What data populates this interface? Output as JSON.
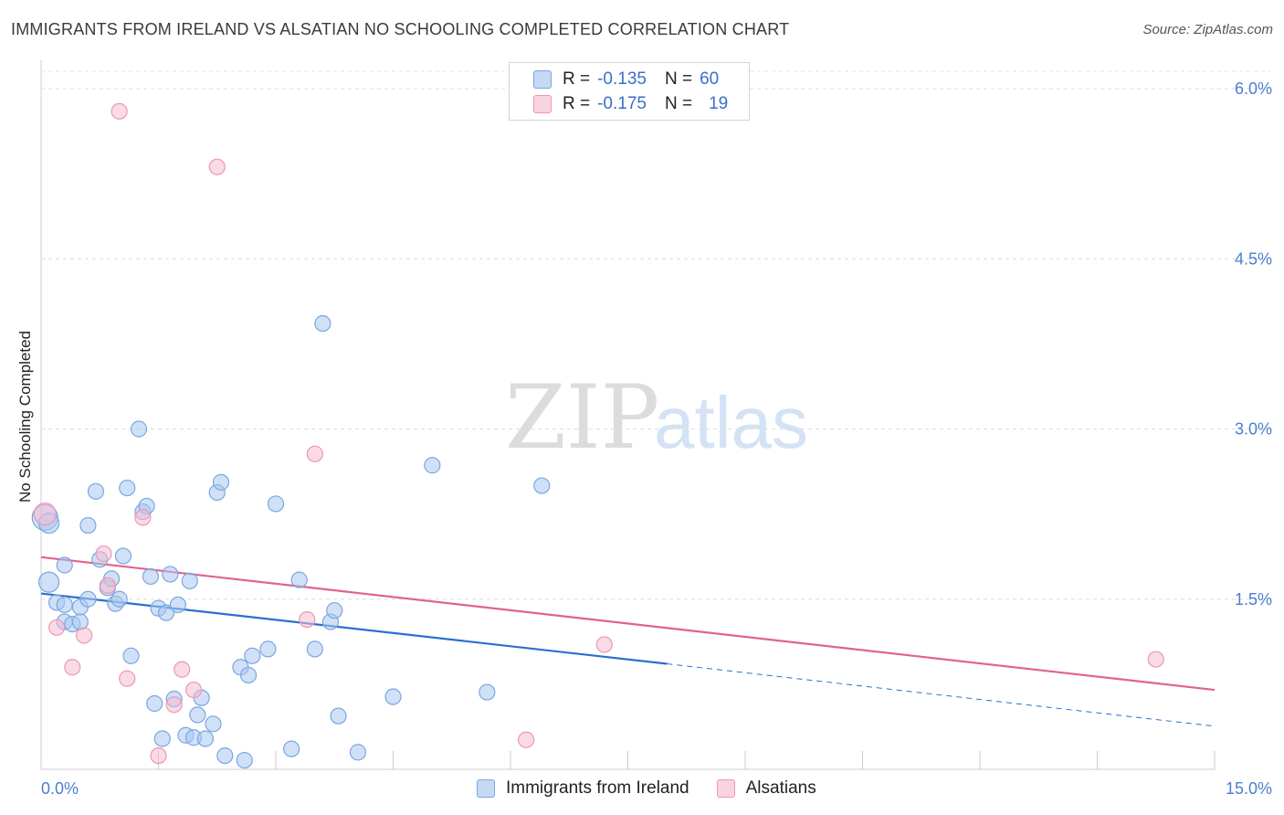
{
  "chart_data": {
    "type": "scatter",
    "title": "IMMIGRANTS FROM IRELAND VS ALSATIAN NO SCHOOLING COMPLETED CORRELATION CHART",
    "source": "Source: ZipAtlas.com",
    "xlabel": "",
    "ylabel": "No Schooling Completed",
    "xlim": [
      0,
      15
    ],
    "ylim": [
      0,
      6.2
    ],
    "x_tick_labels": [
      "0.0%",
      "15.0%"
    ],
    "y_ticks": [
      1.5,
      3.0,
      4.5,
      6.0
    ],
    "y_tick_labels": [
      "1.5%",
      "3.0%",
      "4.5%",
      "6.0%"
    ],
    "grid": true,
    "watermark": "ZIPatlas",
    "series": [
      {
        "name": "Immigrants from Ireland",
        "color": "#a9c8f0",
        "stroke": "#7aa6e0",
        "line_color": "#2a6fd1",
        "R": "-0.135",
        "N": "60",
        "trend": {
          "x0": 0,
          "y0": 1.55,
          "x1": 8.0,
          "y1": 0.93,
          "dash_to_x": 15,
          "dash_to_y": 0.38
        },
        "points": [
          [
            0.05,
            2.22
          ],
          [
            0.1,
            2.17
          ],
          [
            0.1,
            1.65
          ],
          [
            0.2,
            1.47
          ],
          [
            0.3,
            1.8
          ],
          [
            0.3,
            1.45
          ],
          [
            0.3,
            1.3
          ],
          [
            0.4,
            1.28
          ],
          [
            0.5,
            1.3
          ],
          [
            0.5,
            1.43
          ],
          [
            0.6,
            2.15
          ],
          [
            0.6,
            1.5
          ],
          [
            0.7,
            2.45
          ],
          [
            0.75,
            1.85
          ],
          [
            0.85,
            1.6
          ],
          [
            0.9,
            1.68
          ],
          [
            0.95,
            1.46
          ],
          [
            1.0,
            1.5
          ],
          [
            1.05,
            1.88
          ],
          [
            1.1,
            2.48
          ],
          [
            1.15,
            1.0
          ],
          [
            1.25,
            3.0
          ],
          [
            1.3,
            2.27
          ],
          [
            1.35,
            2.32
          ],
          [
            1.4,
            1.7
          ],
          [
            1.45,
            0.58
          ],
          [
            1.5,
            1.42
          ],
          [
            1.55,
            0.27
          ],
          [
            1.6,
            1.38
          ],
          [
            1.65,
            1.72
          ],
          [
            1.7,
            0.62
          ],
          [
            1.75,
            1.45
          ],
          [
            1.85,
            0.3
          ],
          [
            1.9,
            1.66
          ],
          [
            1.95,
            0.28
          ],
          [
            2.0,
            0.48
          ],
          [
            2.05,
            0.63
          ],
          [
            2.1,
            0.27
          ],
          [
            2.2,
            0.4
          ],
          [
            2.25,
            2.44
          ],
          [
            2.3,
            2.53
          ],
          [
            2.35,
            0.12
          ],
          [
            2.55,
            0.9
          ],
          [
            2.6,
            0.08
          ],
          [
            2.65,
            0.83
          ],
          [
            2.7,
            1.0
          ],
          [
            2.9,
            1.06
          ],
          [
            3.0,
            2.34
          ],
          [
            3.2,
            0.18
          ],
          [
            3.3,
            1.67
          ],
          [
            3.5,
            1.06
          ],
          [
            3.6,
            3.93
          ],
          [
            3.7,
            1.3
          ],
          [
            3.75,
            1.4
          ],
          [
            3.8,
            0.47
          ],
          [
            4.05,
            0.15
          ],
          [
            4.5,
            0.64
          ],
          [
            5.0,
            2.68
          ],
          [
            5.7,
            0.68
          ],
          [
            6.4,
            2.5
          ]
        ]
      },
      {
        "name": "Alsatians",
        "color": "#f6bcd0",
        "stroke": "#ec97b5",
        "line_color": "#e0628f",
        "R": "-0.175",
        "N": "19",
        "trend": {
          "x0": 0,
          "y0": 1.87,
          "x1": 15,
          "y1": 0.7
        },
        "points": [
          [
            0.05,
            2.25
          ],
          [
            0.2,
            1.25
          ],
          [
            0.4,
            0.9
          ],
          [
            0.55,
            1.18
          ],
          [
            0.8,
            1.9
          ],
          [
            0.85,
            1.62
          ],
          [
            1.1,
            0.8
          ],
          [
            1.0,
            5.8
          ],
          [
            1.3,
            2.22
          ],
          [
            1.5,
            0.12
          ],
          [
            1.7,
            0.57
          ],
          [
            1.8,
            0.88
          ],
          [
            1.95,
            0.7
          ],
          [
            2.25,
            5.31
          ],
          [
            3.4,
            1.32
          ],
          [
            3.5,
            2.78
          ],
          [
            6.2,
            0.26
          ],
          [
            7.2,
            1.1
          ],
          [
            14.25,
            0.97
          ]
        ]
      }
    ]
  },
  "legend": {
    "r_label": "R =",
    "n_label": "N ="
  }
}
